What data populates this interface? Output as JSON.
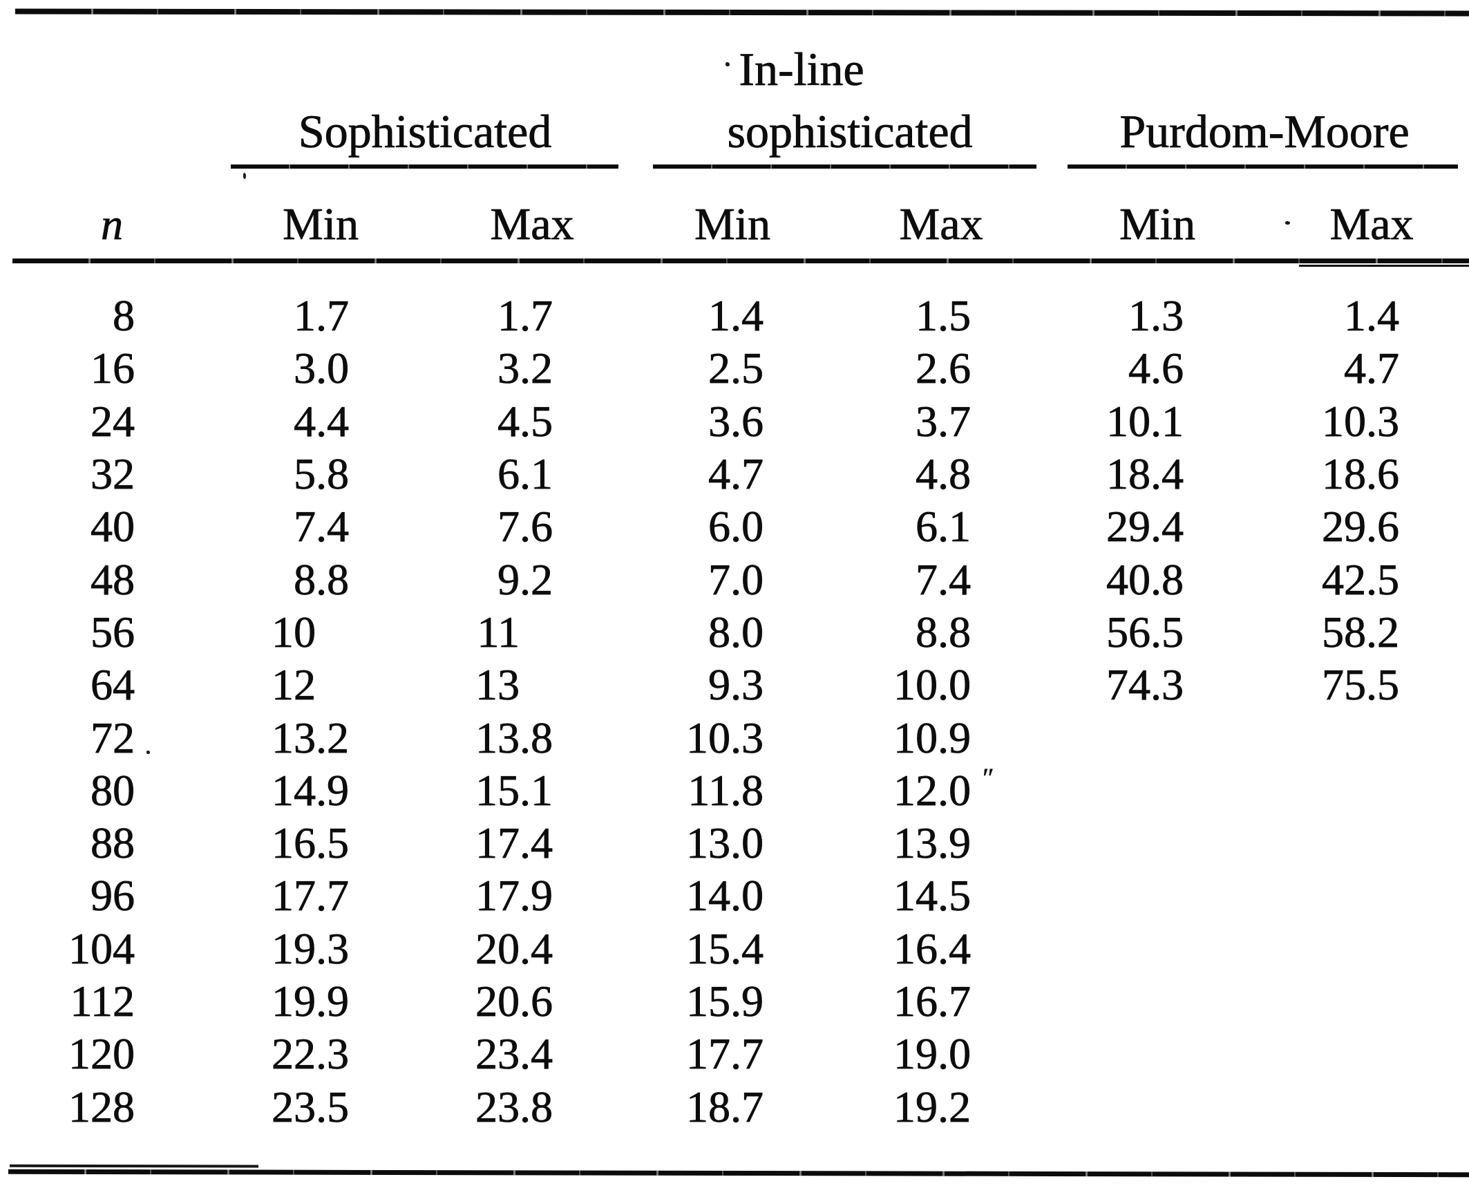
{
  "document": {
    "kind": "scanned journal table, algorithm timing comparison",
    "colors": {
      "ink": "#0d0d0d",
      "paper": "#ffffff"
    },
    "row_header_label": "n",
    "groups": [
      {
        "label": "Sophisticated",
        "columns": [
          "Min",
          "Max"
        ]
      },
      {
        "label": "In-line sophisticated",
        "label_lines": [
          "In-line",
          "sophisticated"
        ],
        "columns": [
          "Min",
          "Max"
        ]
      },
      {
        "label": "Purdom-Moore",
        "columns": [
          "Min",
          "Max"
        ]
      }
    ],
    "rows": [
      {
        "n": "8",
        "values": [
          "1.7",
          "1.7",
          "1.4",
          "1.5",
          "1.3",
          "1.4"
        ]
      },
      {
        "n": "16",
        "values": [
          "3.0",
          "3.2",
          "2.5",
          "2.6",
          "4.6",
          "4.7"
        ]
      },
      {
        "n": "24",
        "values": [
          "4.4",
          "4.5",
          "3.6",
          "3.7",
          "10.1",
          "10.3"
        ]
      },
      {
        "n": "32",
        "values": [
          "5.8",
          "6.1",
          "4.7",
          "4.8",
          "18.4",
          "18.6"
        ]
      },
      {
        "n": "40",
        "values": [
          "7.4",
          "7.6",
          "6.0",
          "6.1",
          "29.4",
          "29.6"
        ]
      },
      {
        "n": "48",
        "values": [
          "8.8",
          "9.2",
          "7.0",
          "7.4",
          "40.8",
          "42.5"
        ]
      },
      {
        "n": "56",
        "values": [
          "10",
          "11",
          "8.0",
          "8.8",
          "56.5",
          "58.2"
        ]
      },
      {
        "n": "64",
        "values": [
          "12",
          "13",
          "9.3",
          "10.0",
          "74.3",
          "75.5"
        ]
      },
      {
        "n": "72",
        "values": [
          "13.2",
          "13.8",
          "10.3",
          "10.9",
          "",
          ""
        ]
      },
      {
        "n": "80",
        "values": [
          "14.9",
          "15.1",
          "11.8",
          "12.0",
          "",
          ""
        ]
      },
      {
        "n": "88",
        "values": [
          "16.5",
          "17.4",
          "13.0",
          "13.9",
          "",
          ""
        ]
      },
      {
        "n": "96",
        "values": [
          "17.7",
          "17.9",
          "14.0",
          "14.5",
          "",
          ""
        ]
      },
      {
        "n": "104",
        "values": [
          "19.3",
          "20.4",
          "15.4",
          "16.4",
          "",
          ""
        ]
      },
      {
        "n": "112",
        "values": [
          "19.9",
          "20.6",
          "15.9",
          "16.7",
          "",
          ""
        ]
      },
      {
        "n": "120",
        "values": [
          "22.3",
          "23.4",
          "17.7",
          "19.0",
          "",
          ""
        ]
      },
      {
        "n": "128",
        "values": [
          "23.5",
          "23.8",
          "18.7",
          "19.2",
          "",
          ""
        ]
      }
    ],
    "artifacts": {
      "stray_tick": "ʺ"
    }
  }
}
